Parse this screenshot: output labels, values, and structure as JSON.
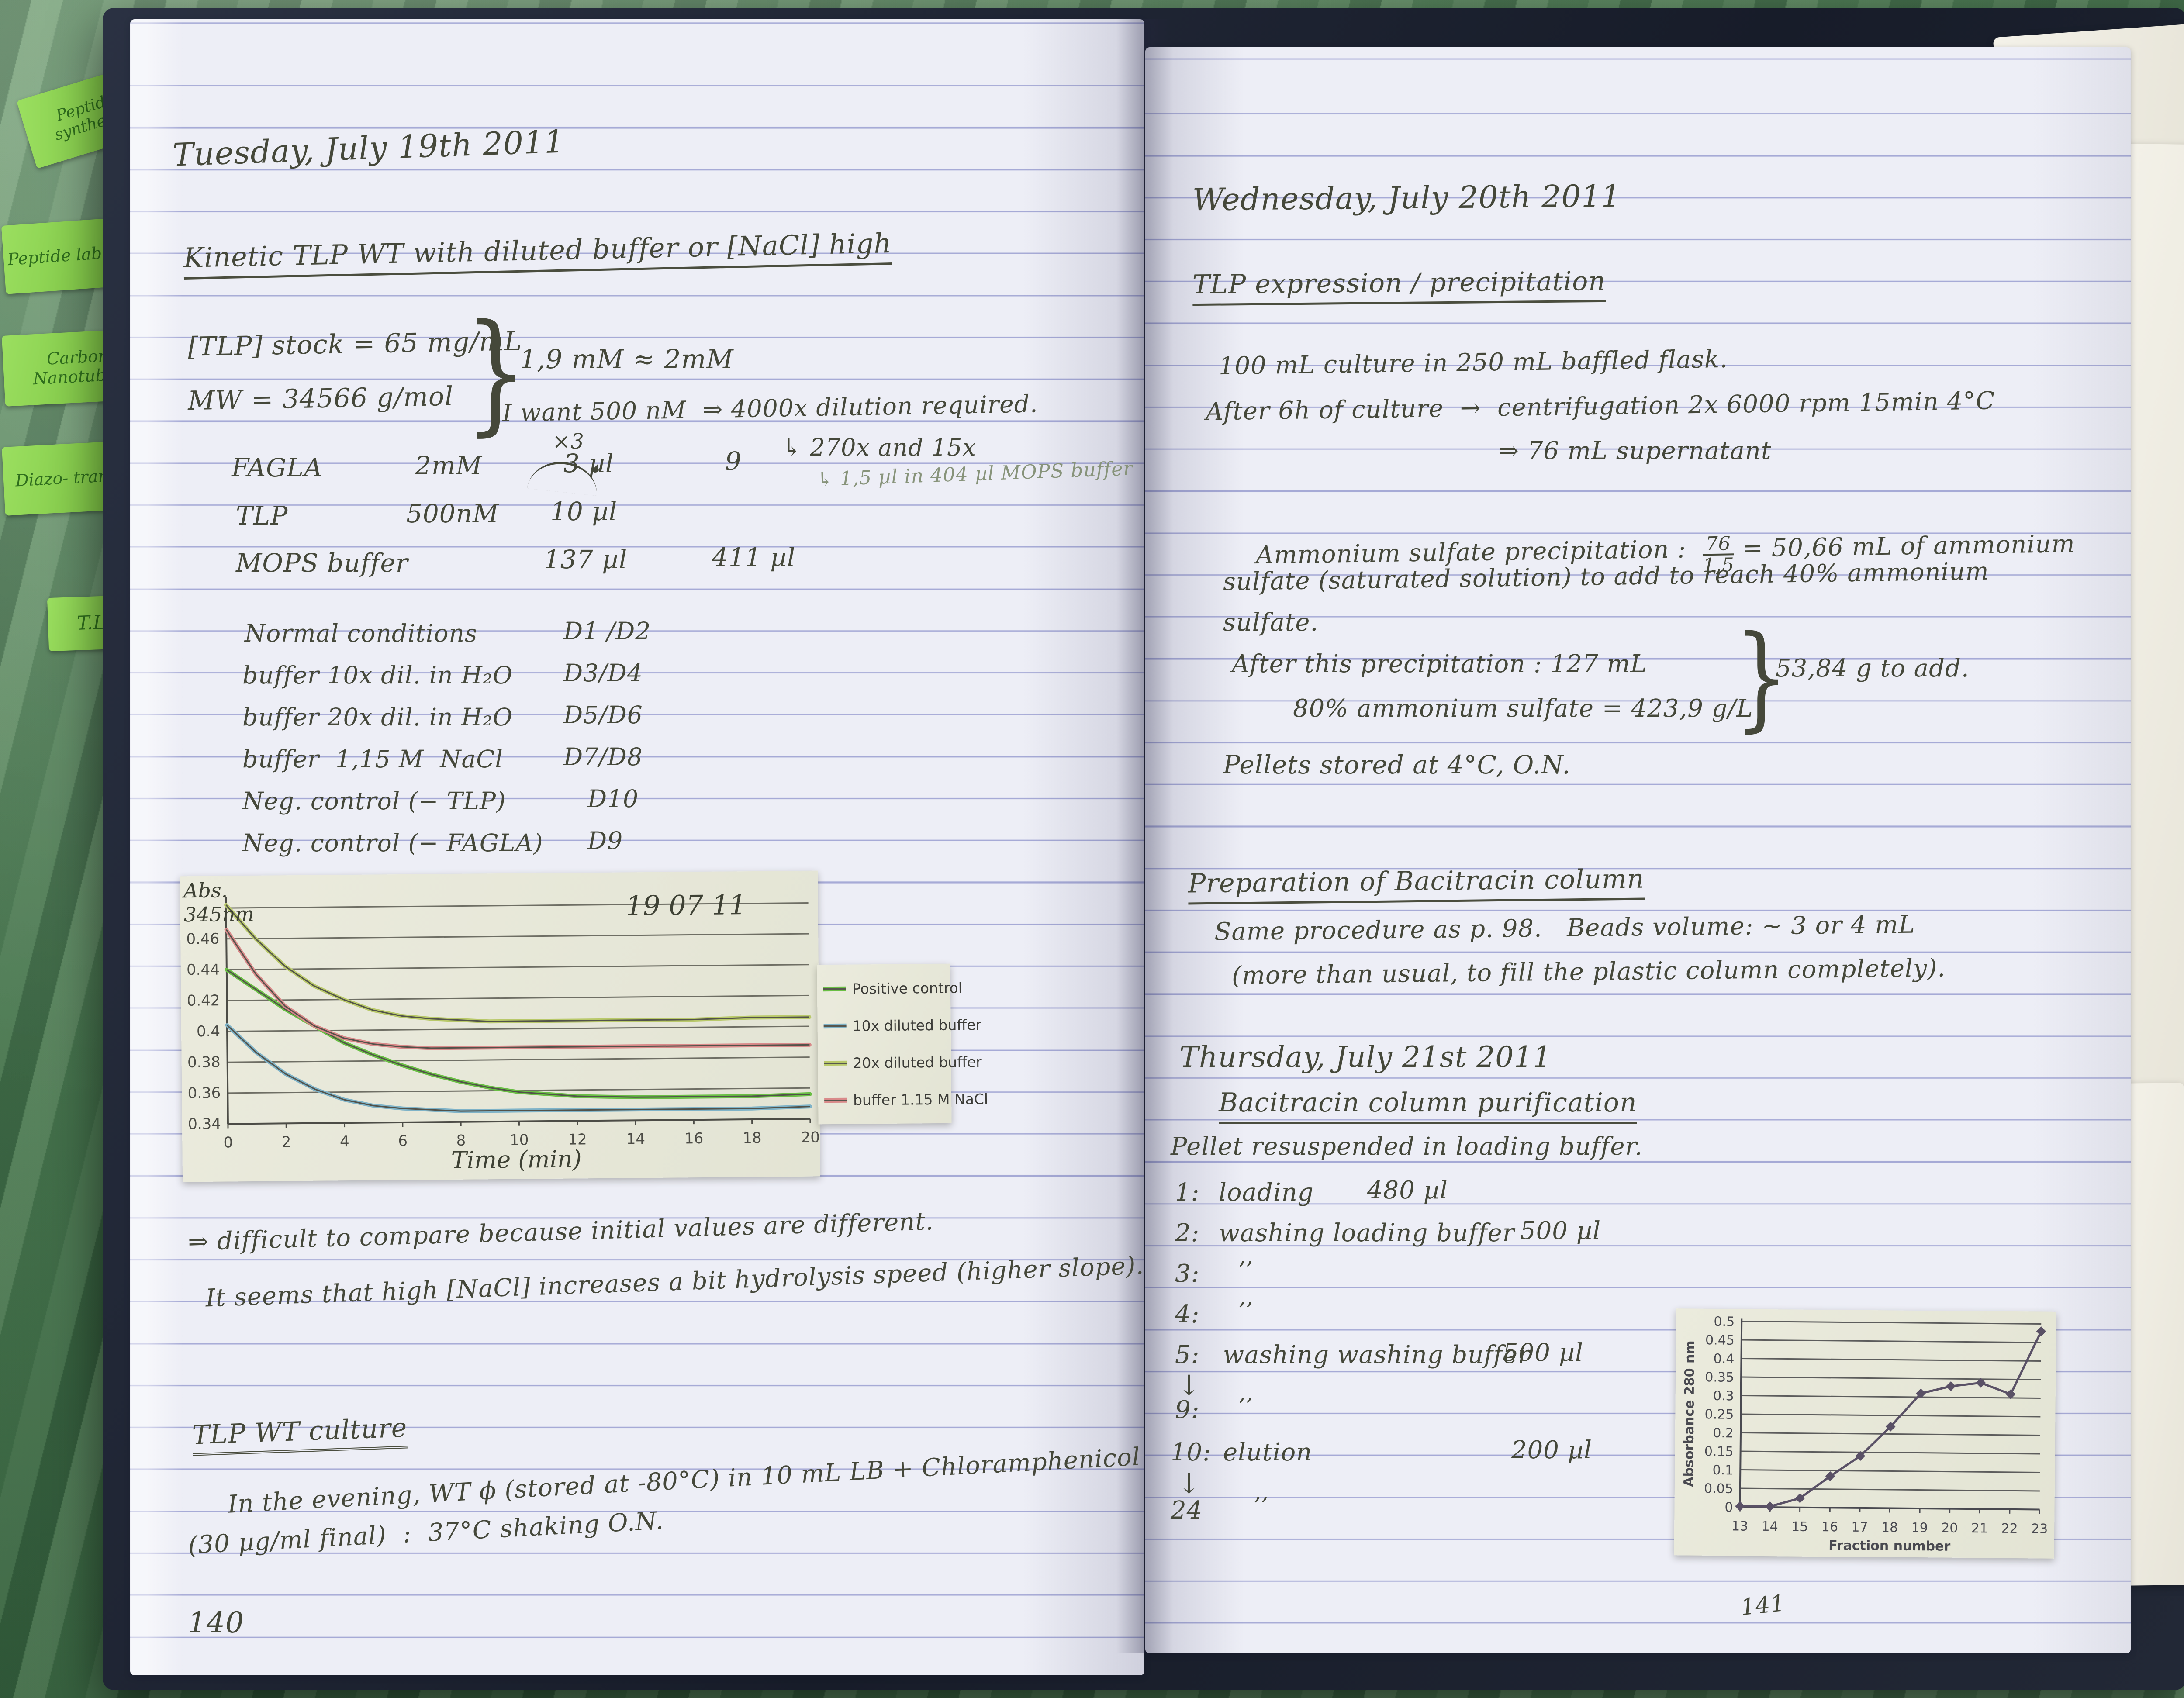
{
  "sticky_tabs": [
    {
      "label": "Peptide synthesis"
    },
    {
      "label": "Peptide labelling"
    },
    {
      "label": "Carbon Nanotubes"
    },
    {
      "label": "Diazo- transfer"
    },
    {
      "label": "T.L.P"
    }
  ],
  "left_page": {
    "date": "Tuesday, July 19th 2011",
    "title": "Kinetic TLP WT with diluted buffer or [NaCl] high",
    "stock_line1": "[TLP] stock = 65 mg/mL",
    "stock_line2": "MW = 34566 g/mol",
    "brace": "}",
    "concentration_note": "1,9 mM ≈ 2mM",
    "dilution_line": "I want 500 nM  ⇒ 4000x dilution required.",
    "dilution_sub": "↳ 270x and 15x",
    "pencil_note": "↳ 1,5 µl in 404 µl MOPS buffer",
    "times3": "×3",
    "mix_table": {
      "rows": [
        {
          "name": "FAGLA",
          "conc": "2mM",
          "vol": "3 µl",
          "extra": "9"
        },
        {
          "name": "TLP",
          "conc": "500nM",
          "vol": "10 µl",
          "extra": ""
        },
        {
          "name": "MOPS buffer",
          "conc": "",
          "vol": "137 µl",
          "extra": "411 µl"
        }
      ]
    },
    "conditions": [
      {
        "label": "Normal conditions",
        "wells": "D1 /D2"
      },
      {
        "label": "buffer 10x dil. in H₂O",
        "wells": "D3/D4"
      },
      {
        "label": "buffer 20x dil. in H₂O",
        "wells": "D5/D6"
      },
      {
        "label": "buffer  1,15 M  NaCl",
        "wells": "D7/D8"
      },
      {
        "label": "Neg. control (− TLP)",
        "wells": "D10"
      },
      {
        "label": "Neg. control (− FAGLA)",
        "wells": "D9"
      }
    ],
    "conclusion1": "⇒ difficult to compare because initial values are different.",
    "conclusion2": "It seems that high [NaCl] increases a bit hydrolysis speed (higher slope).",
    "culture_title": "TLP WT culture",
    "culture_line1": "In the evening, WT ϕ (stored at -80°C) in 10 mL LB + Chloramphenicol",
    "culture_line2": "(30 µg/ml final)  :  37°C shaking O.N.",
    "page_number": "140"
  },
  "right_page": {
    "date": "Wednesday, July 20th 2011",
    "title": "TLP expression / precipitation",
    "culture_line1": "100 mL culture in 250 mL baffled flask.",
    "culture_line2": "After 6h of culture  →  centrifugation 2x 6000 rpm 15min 4°C",
    "culture_line3": "⇒ 76 mL supernatant",
    "ammonium_prefix": "Ammonium sulfate precipitation :  ",
    "frac_num": "76",
    "frac_den": "1,5",
    "ammonium_suffix": " = 50,66 mL of ammonium",
    "ammonium_line2": "sulfate (saturated solution) to add to reach 40% ammonium",
    "ammonium_line3": "sulfate.",
    "after_precip": "After this precipitation : 127 mL",
    "sulfate80": "80% ammonium sulfate = 423,9 g/L",
    "brace": "}",
    "to_add": "53,84 g to add.",
    "pellets": "Pellets stored at 4°C, O.N.",
    "prep_title": "Preparation of Bacitracin column",
    "prep_line1": "Same procedure as p. 98.   Beads volume: ~ 3 or 4 mL",
    "prep_line2": "(more than usual, to fill the plastic column completely).",
    "thursday_date": "Thursday, July 21st 2011",
    "bacitracin_title": "Bacitracin column purification",
    "pellet_resuspended": "Pellet resuspended in loading buffer.",
    "arrow_down": "↓",
    "steps": [
      {
        "num": "1:",
        "label": "loading",
        "vol": "480 µl"
      },
      {
        "num": "2:",
        "label": "washing loading buffer",
        "vol": "500 µl"
      },
      {
        "num": "3:",
        "label": "’’",
        "vol": ""
      },
      {
        "num": "4:",
        "label": "’’",
        "vol": ""
      },
      {
        "num": "5:",
        "label": "washing washing buffer",
        "vol": "500 µl"
      },
      {
        "num": "9:",
        "label": "’’",
        "vol": ""
      },
      {
        "num": "10:",
        "label": "elution",
        "vol": "200 µl"
      },
      {
        "num": "24",
        "label": "’’",
        "vol": ""
      }
    ],
    "page_number": "141"
  },
  "chart_data": [
    {
      "type": "line",
      "title": "19 07 11",
      "ylabel": "Abs.\n345nm",
      "xlabel": "Time (min)",
      "x": [
        0,
        1,
        2,
        3,
        4,
        5,
        6,
        7,
        8,
        9,
        10,
        12,
        14,
        16,
        18,
        20
      ],
      "xticks": [
        0,
        2,
        4,
        6,
        8,
        10,
        12,
        14,
        16,
        18,
        20
      ],
      "ylim": [
        0.34,
        0.4853
      ],
      "yticks": [
        0.34,
        0.36,
        0.38,
        0.4,
        0.42,
        0.44,
        0.46
      ],
      "grid_lines": [
        0.34,
        0.36,
        0.38,
        0.4,
        0.42,
        0.44,
        0.46,
        0.48
      ],
      "grid": true,
      "legend_position": "right",
      "series": [
        {
          "name": "Positive control",
          "color": "#6abf45",
          "values": [
            0.44,
            0.427,
            0.414,
            0.403,
            0.392,
            0.384,
            0.377,
            0.371,
            0.366,
            0.362,
            0.359,
            0.356,
            0.355,
            0.355,
            0.355,
            0.356
          ]
        },
        {
          "name": "10x diluted buffer",
          "color": "#7fb3c8",
          "values": [
            0.404,
            0.386,
            0.372,
            0.362,
            0.355,
            0.351,
            0.349,
            0.348,
            0.347,
            0.347,
            0.347,
            0.347,
            0.347,
            0.347,
            0.347,
            0.348
          ]
        },
        {
          "name": "20x diluted buffer",
          "color": "#b9c96a",
          "values": [
            0.482,
            0.46,
            0.442,
            0.429,
            0.42,
            0.413,
            0.409,
            0.407,
            0.406,
            0.405,
            0.405,
            0.405,
            0.405,
            0.405,
            0.406,
            0.406
          ]
        },
        {
          "name": "buffer 1.15 M NaCl",
          "color": "#d98a8a",
          "values": [
            0.466,
            0.437,
            0.416,
            0.403,
            0.395,
            0.391,
            0.389,
            0.388,
            0.388,
            0.388,
            0.388,
            0.388,
            0.388,
            0.388,
            0.388,
            0.388
          ]
        }
      ]
    },
    {
      "type": "line",
      "title": "",
      "ylabel": "Absorbance 280 nm",
      "xlabel": "Fraction number",
      "x": [
        13,
        14,
        15,
        16,
        17,
        18,
        19,
        20,
        21,
        22,
        23
      ],
      "xticks": [
        13,
        14,
        15,
        16,
        17,
        18,
        19,
        20,
        21,
        22,
        23
      ],
      "ylim": [
        0,
        0.5
      ],
      "yticks": [
        0,
        0.05,
        0.1,
        0.15,
        0.2,
        0.25,
        0.3,
        0.35,
        0.4,
        0.45,
        0.5
      ],
      "grid": true,
      "legend_position": "none",
      "series": [
        {
          "name": "Absorbance 280 nm",
          "color": "#5a5166",
          "marker": "diamond",
          "values": [
            0.002,
            0.002,
            0.025,
            0.085,
            0.14,
            0.22,
            0.31,
            0.33,
            0.34,
            0.31,
            0.48
          ]
        }
      ]
    }
  ]
}
